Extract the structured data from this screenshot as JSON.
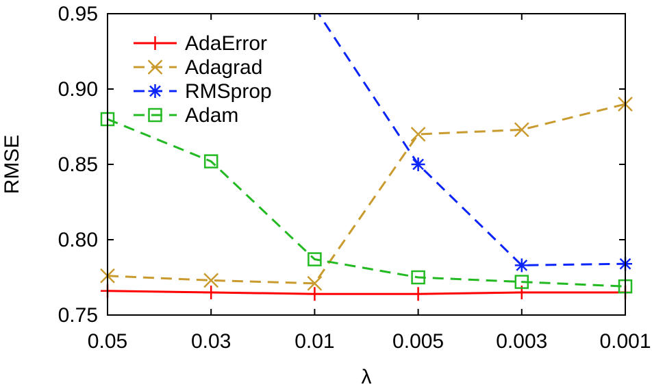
{
  "chart_data": {
    "type": "line",
    "xlabel": "λ",
    "ylabel": "RMSE",
    "categories": [
      "0.05",
      "0.03",
      "0.01",
      "0.005",
      "0.003",
      "0.001"
    ],
    "ylim": [
      0.75,
      0.95
    ],
    "yticks": [
      "0.75",
      "0.80",
      "0.85",
      "0.90",
      "0.95"
    ],
    "grid": false,
    "legend_position": "top-left",
    "series": [
      {
        "name": "AdaError",
        "values": [
          0.766,
          0.765,
          0.764,
          0.764,
          0.765,
          0.765
        ],
        "color": "#ff0000",
        "marker": "plus",
        "dash": "solid"
      },
      {
        "name": "Adagrad",
        "values": [
          0.776,
          0.773,
          0.771,
          0.87,
          0.873,
          0.89
        ],
        "color": "#c99a2e",
        "marker": "x",
        "dash": "dashed"
      },
      {
        "name": "RMSprop",
        "values": [
          null,
          null,
          0.954,
          0.85,
          0.783,
          0.784
        ],
        "color": "#0b24fb",
        "marker": "star",
        "dash": "dashed"
      },
      {
        "name": "Adam",
        "values": [
          0.88,
          0.852,
          0.787,
          0.775,
          0.772,
          0.769
        ],
        "color": "#22b922",
        "marker": "square",
        "dash": "dashed"
      }
    ]
  }
}
